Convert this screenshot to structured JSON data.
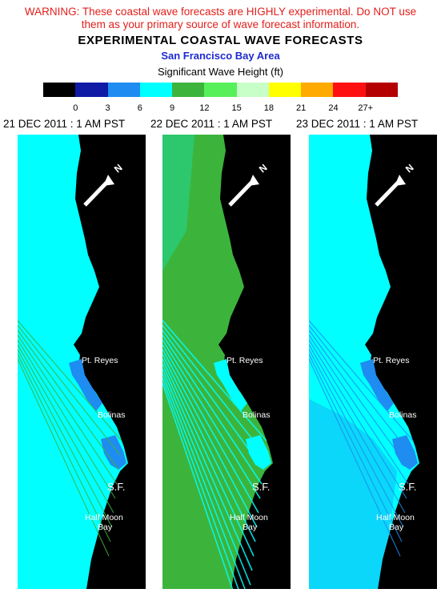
{
  "header": {
    "warning_line1": "WARNING:  These coastal wave forecasts are HIGHLY experimental.  Do NOT use",
    "warning_line2": "them as your primary source of wave forecast information.",
    "title": "EXPERIMENTAL COASTAL WAVE FORECASTS",
    "subtitle": "San Francisco Bay Area",
    "colorbar_title": "Significant Wave Height (ft)"
  },
  "colorbar": {
    "colors": [
      "#000000",
      "#0f1aa5",
      "#1e8cf0",
      "#00ffff",
      "#3cb43c",
      "#58f05a",
      "#c8ffc8",
      "#ffff00",
      "#ffaa00",
      "#ff1010",
      "#b40000"
    ],
    "ticks": [
      "0",
      "3",
      "6",
      "9",
      "12",
      "15",
      "18",
      "21",
      "24",
      "27+"
    ]
  },
  "panels": [
    {
      "date": "21 DEC 2011 : 1 AM PST",
      "ocean_color": "#00ffff",
      "streak_color": "#3cb43c",
      "coast_color": "#1e8cf0"
    },
    {
      "date": "22 DEC 2011 : 1 AM PST",
      "ocean_color": "#3cb43c",
      "streak_color": "#00ffff",
      "coast_color": "#00ffff"
    },
    {
      "date": "23 DEC 2011 : 1 AM PST",
      "ocean_color": "#00ffff",
      "streak_color": "#1e8cf0",
      "coast_color": "#1e8cf0"
    }
  ],
  "map_labels": {
    "pt_reyes": "Pt. Reyes",
    "bolinas": "Bolinas",
    "sf": "S.F.",
    "half_moon_line1": "Half Moon",
    "half_moon_line2": "Bay",
    "north": "N"
  }
}
